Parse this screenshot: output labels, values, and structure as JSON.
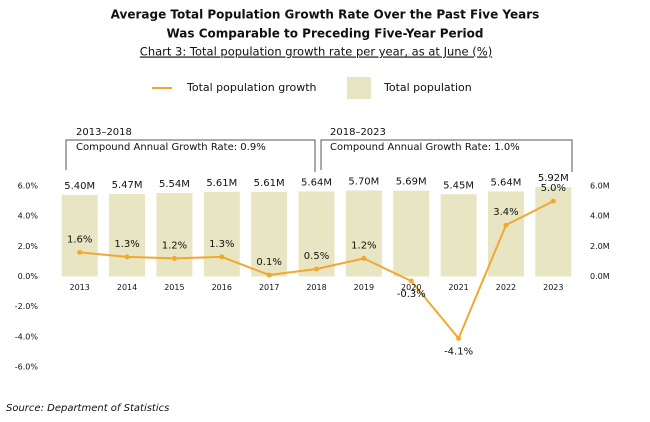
{
  "chart_data": {
    "type": "bar",
    "title": [
      "Average Total Population Growth Rate Over the Past Five Years",
      "Was Comparable to Preceding Five-Year Period"
    ],
    "subtitle": "Chart 3: Total population growth rate per year, as at June (%)",
    "categories": [
      "2013",
      "2014",
      "2015",
      "2016",
      "2017",
      "2018",
      "2019",
      "2020",
      "2021",
      "2022",
      "2023"
    ],
    "series": [
      {
        "name": "Total population growth",
        "type": "line",
        "color": "#f0a830",
        "values": [
          1.6,
          1.3,
          1.2,
          1.3,
          0.1,
          0.5,
          1.2,
          -0.3,
          -4.1,
          3.4,
          5.0
        ],
        "value_labels": [
          "1.6%",
          "1.3%",
          "1.2%",
          "1.3%",
          "0.1%",
          "0.5%",
          "1.2%",
          "-0.3%",
          "-4.1%",
          "3.4%",
          "5.0%"
        ]
      },
      {
        "name": "Total population",
        "type": "bar",
        "axis": "y2",
        "color": "#e8e5c3",
        "values": [
          5.4,
          5.47,
          5.54,
          5.61,
          5.61,
          5.64,
          5.7,
          5.69,
          5.45,
          5.64,
          5.92
        ],
        "value_labels": [
          "5.40M",
          "5.47M",
          "5.54M",
          "5.61M",
          "5.61M",
          "5.64M",
          "5.70M",
          "5.69M",
          "5.45M",
          "5.64M",
          "5.92M"
        ]
      }
    ],
    "ylim": [
      -6,
      6
    ],
    "yticks": [
      {
        "value": -6,
        "label": "-6.0%"
      },
      {
        "value": -4,
        "label": "-4.0%"
      },
      {
        "value": -2,
        "label": "-2.0%"
      },
      {
        "value": 0,
        "label": "0.0%"
      },
      {
        "value": 2,
        "label": "2.0%"
      },
      {
        "value": 4,
        "label": "4.0%"
      },
      {
        "value": 6,
        "label": "6.0%"
      }
    ],
    "y2lim": [
      -6,
      6
    ],
    "y2ticks": [
      {
        "value": 0,
        "label": "0.0M"
      },
      {
        "value": 2,
        "label": "2.0M"
      },
      {
        "value": 4,
        "label": "4.0M"
      },
      {
        "value": 6,
        "label": "6.0M"
      }
    ],
    "annotations": [
      {
        "period": "2013–2018",
        "text": "Compound Annual Growth Rate: 0.9%"
      },
      {
        "period": "2018–2023",
        "text": "Compound Annual Growth Rate: 1.0%"
      }
    ],
    "source": "Source: Department of Statistics"
  }
}
